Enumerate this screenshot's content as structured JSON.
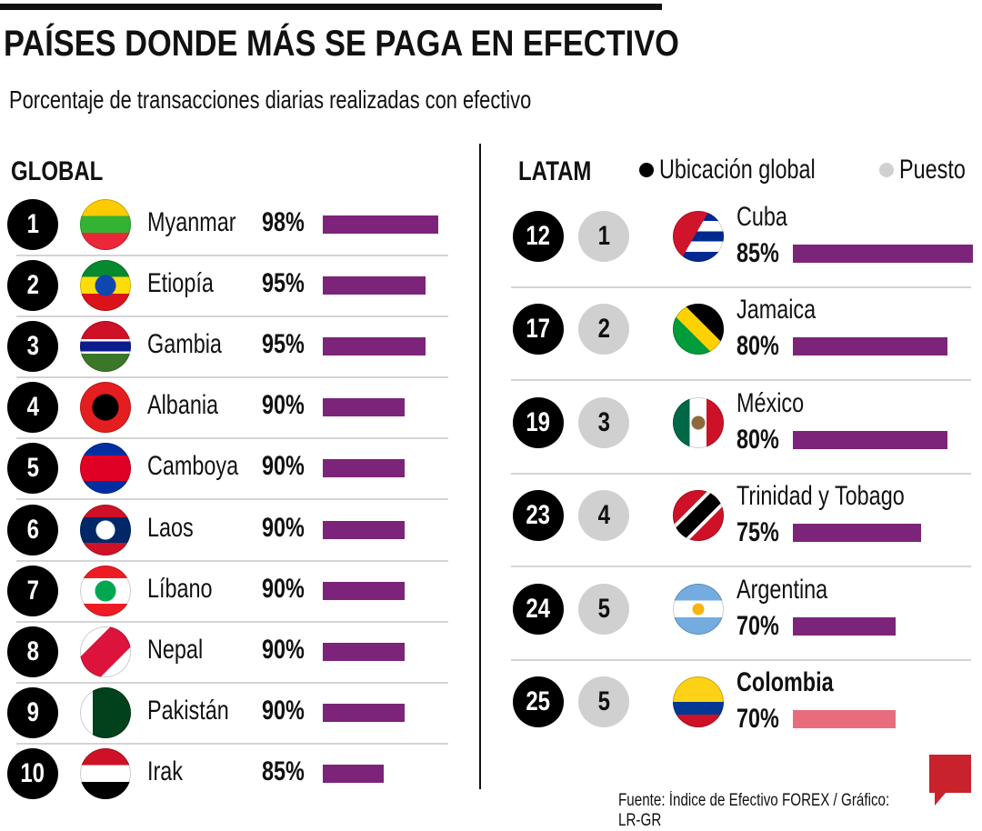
{
  "title": "PAÍSES DONDE MÁS SE PAGA EN EFECTIVO",
  "subtitle": "Porcentaje de transacciones diarias realizadas con efectivo",
  "global_label": "GLOBAL",
  "latam_label": "LATAM",
  "legend": {
    "global": "Ubicación global",
    "puesto": "Puesto"
  },
  "source": "Fuente: Índice de Efectivo FOREX / Gráfico: LR-GR",
  "logo": "LR",
  "colors": {
    "bar": "#7b2479",
    "highlight": "#e86c7e"
  },
  "chart_data": {
    "type": "bar",
    "title": "PAÍSES DONDE MÁS SE PAGA EN EFECTIVO",
    "global": [
      {
        "rank": "1",
        "country": "Myanmar",
        "value": 98,
        "label": "98%",
        "flag": "myanmar"
      },
      {
        "rank": "2",
        "country": "Etiopía",
        "value": 95,
        "label": "95%",
        "flag": "ethiopia"
      },
      {
        "rank": "3",
        "country": "Gambia",
        "value": 95,
        "label": "95%",
        "flag": "gambia"
      },
      {
        "rank": "4",
        "country": "Albania",
        "value": 90,
        "label": "90%",
        "flag": "albania"
      },
      {
        "rank": "5",
        "country": "Camboya",
        "value": 90,
        "label": "90%",
        "flag": "cambodia"
      },
      {
        "rank": "6",
        "country": "Laos",
        "value": 90,
        "label": "90%",
        "flag": "laos"
      },
      {
        "rank": "7",
        "country": "Líbano",
        "value": 90,
        "label": "90%",
        "flag": "lebanon"
      },
      {
        "rank": "8",
        "country": "Nepal",
        "value": 90,
        "label": "90%",
        "flag": "nepal"
      },
      {
        "rank": "9",
        "country": "Pakistán",
        "value": 90,
        "label": "90%",
        "flag": "pakistan"
      },
      {
        "rank": "10",
        "country": "Irak",
        "value": 85,
        "label": "85%",
        "flag": "iraq"
      }
    ],
    "latam": [
      {
        "global_rank": "12",
        "puesto": "1",
        "country": "Cuba",
        "value": 85,
        "label": "85%",
        "flag": "cuba"
      },
      {
        "global_rank": "17",
        "puesto": "2",
        "country": "Jamaica",
        "value": 80,
        "label": "80%",
        "flag": "jamaica"
      },
      {
        "global_rank": "19",
        "puesto": "3",
        "country": "México",
        "value": 80,
        "label": "80%",
        "flag": "mexico"
      },
      {
        "global_rank": "23",
        "puesto": "4",
        "country": "Trinidad y Tobago",
        "value": 75,
        "label": "75%",
        "flag": "trinidad"
      },
      {
        "global_rank": "24",
        "puesto": "5",
        "country": "Argentina",
        "value": 70,
        "label": "70%",
        "flag": "argentina"
      },
      {
        "global_rank": "25",
        "puesto": "5",
        "country": "Colombia",
        "value": 70,
        "label": "70%",
        "flag": "colombia",
        "highlight": true
      }
    ]
  }
}
